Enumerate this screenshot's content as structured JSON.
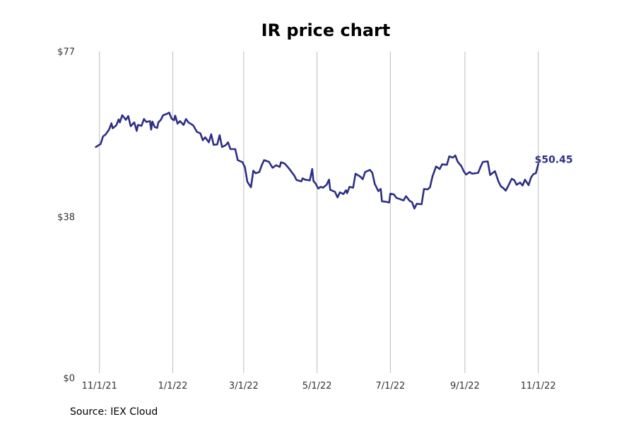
{
  "chart_data": {
    "type": "line",
    "title": "IR price chart",
    "source": "Source: IEX Cloud",
    "color": "#2e2e86",
    "y_ticks": [
      {
        "value": 0,
        "label": "$0"
      },
      {
        "value": 38,
        "label": "$38"
      },
      {
        "value": 77,
        "label": "$77"
      }
    ],
    "x_ticks": [
      {
        "date": "2021-11-01",
        "label": "11/1/21"
      },
      {
        "date": "2022-01-01",
        "label": "1/1/22"
      },
      {
        "date": "2022-03-01",
        "label": "3/1/22"
      },
      {
        "date": "2022-05-01",
        "label": "5/1/22"
      },
      {
        "date": "2022-07-01",
        "label": "7/1/22"
      },
      {
        "date": "2022-09-01",
        "label": "9/1/22"
      },
      {
        "date": "2022-11-01",
        "label": "11/1/22"
      }
    ],
    "ylim": [
      0,
      77
    ],
    "xlim": [
      "2021-10-21",
      "2022-12-10"
    ],
    "last_value_label": "$50.45",
    "series": [
      {
        "name": "IR",
        "points": [
          [
            "2021-10-29",
            54.5
          ],
          [
            "2021-11-02",
            55.2
          ],
          [
            "2021-11-04",
            57.0
          ],
          [
            "2021-11-06",
            57.4
          ],
          [
            "2021-11-09",
            58.6
          ],
          [
            "2021-11-11",
            60.1
          ],
          [
            "2021-11-12",
            58.9
          ],
          [
            "2021-11-15",
            59.6
          ],
          [
            "2021-11-17",
            61.0
          ],
          [
            "2021-11-18",
            60.3
          ],
          [
            "2021-11-20",
            62.0
          ],
          [
            "2021-11-23",
            60.9
          ],
          [
            "2021-11-25",
            61.8
          ],
          [
            "2021-11-27",
            59.4
          ],
          [
            "2021-11-30",
            60.3
          ],
          [
            "2021-12-02",
            58.3
          ],
          [
            "2021-12-03",
            59.7
          ],
          [
            "2021-12-06",
            59.5
          ],
          [
            "2021-12-08",
            61.1
          ],
          [
            "2021-12-10",
            60.4
          ],
          [
            "2021-12-13",
            60.6
          ],
          [
            "2021-12-14",
            58.6
          ],
          [
            "2021-12-15",
            60.5
          ],
          [
            "2021-12-17",
            59.2
          ],
          [
            "2021-12-19",
            59.0
          ],
          [
            "2021-12-20",
            60.3
          ],
          [
            "2021-12-22",
            60.9
          ],
          [
            "2021-12-24",
            62.0
          ],
          [
            "2021-12-27",
            62.3
          ],
          [
            "2021-12-29",
            62.6
          ],
          [
            "2021-12-31",
            61.2
          ],
          [
            "2022-01-02",
            60.8
          ],
          [
            "2022-01-03",
            61.9
          ],
          [
            "2022-01-05",
            60.0
          ],
          [
            "2022-01-07",
            60.6
          ],
          [
            "2022-01-10",
            59.7
          ],
          [
            "2022-01-12",
            61.1
          ],
          [
            "2022-01-14",
            60.3
          ],
          [
            "2022-01-18",
            59.6
          ],
          [
            "2022-01-21",
            58.1
          ],
          [
            "2022-01-24",
            57.7
          ],
          [
            "2022-01-26",
            56.1
          ],
          [
            "2022-01-28",
            56.8
          ],
          [
            "2022-01-31",
            55.6
          ],
          [
            "2022-02-02",
            57.5
          ],
          [
            "2022-02-04",
            55.0
          ],
          [
            "2022-02-07",
            55.1
          ],
          [
            "2022-02-09",
            57.3
          ],
          [
            "2022-02-11",
            54.5
          ],
          [
            "2022-02-14",
            54.9
          ],
          [
            "2022-02-16",
            55.6
          ],
          [
            "2022-02-18",
            54.0
          ],
          [
            "2022-02-22",
            54.0
          ],
          [
            "2022-02-24",
            51.4
          ],
          [
            "2022-02-28",
            50.9
          ],
          [
            "2022-03-02",
            49.7
          ],
          [
            "2022-03-04",
            46.3
          ],
          [
            "2022-03-07",
            45.0
          ],
          [
            "2022-03-09",
            48.9
          ],
          [
            "2022-03-11",
            48.3
          ],
          [
            "2022-03-14",
            48.6
          ],
          [
            "2022-03-16",
            50.2
          ],
          [
            "2022-03-18",
            51.4
          ],
          [
            "2022-03-22",
            51.0
          ],
          [
            "2022-03-25",
            49.6
          ],
          [
            "2022-03-28",
            50.2
          ],
          [
            "2022-03-31",
            49.8
          ],
          [
            "2022-04-01",
            50.9
          ],
          [
            "2022-04-04",
            50.6
          ],
          [
            "2022-04-06",
            50.0
          ],
          [
            "2022-04-08",
            49.3
          ],
          [
            "2022-04-12",
            47.8
          ],
          [
            "2022-04-14",
            46.7
          ],
          [
            "2022-04-18",
            46.4
          ],
          [
            "2022-04-19",
            47.1
          ],
          [
            "2022-04-21",
            46.8
          ],
          [
            "2022-04-25",
            46.6
          ],
          [
            "2022-04-27",
            49.3
          ],
          [
            "2022-04-28",
            46.5
          ],
          [
            "2022-04-30",
            45.8
          ],
          [
            "2022-05-02",
            44.7
          ],
          [
            "2022-05-04",
            45.1
          ],
          [
            "2022-05-06",
            44.9
          ],
          [
            "2022-05-09",
            45.6
          ],
          [
            "2022-05-11",
            46.8
          ],
          [
            "2022-05-12",
            44.4
          ],
          [
            "2022-05-16",
            43.9
          ],
          [
            "2022-05-18",
            42.6
          ],
          [
            "2022-05-20",
            43.8
          ],
          [
            "2022-05-23",
            43.4
          ],
          [
            "2022-05-25",
            44.3
          ],
          [
            "2022-05-26",
            43.6
          ],
          [
            "2022-05-28",
            45.1
          ],
          [
            "2022-05-31",
            44.9
          ],
          [
            "2022-06-02",
            48.2
          ],
          [
            "2022-06-06",
            47.5
          ],
          [
            "2022-06-08",
            46.9
          ],
          [
            "2022-06-10",
            48.6
          ],
          [
            "2022-06-14",
            49.1
          ],
          [
            "2022-06-16",
            48.4
          ],
          [
            "2022-06-18",
            45.8
          ],
          [
            "2022-06-21",
            44.1
          ],
          [
            "2022-06-23",
            44.6
          ],
          [
            "2022-06-24",
            41.7
          ],
          [
            "2022-06-27",
            41.6
          ],
          [
            "2022-06-30",
            41.4
          ],
          [
            "2022-07-01",
            43.5
          ],
          [
            "2022-07-04",
            43.3
          ],
          [
            "2022-07-06",
            42.5
          ],
          [
            "2022-07-08",
            42.3
          ],
          [
            "2022-07-12",
            41.9
          ],
          [
            "2022-07-14",
            42.9
          ],
          [
            "2022-07-17",
            41.8
          ],
          [
            "2022-07-19",
            41.5
          ],
          [
            "2022-07-21",
            40.0
          ],
          [
            "2022-07-23",
            41.1
          ],
          [
            "2022-07-27",
            41.0
          ],
          [
            "2022-07-29",
            44.6
          ],
          [
            "2022-08-01",
            44.5
          ],
          [
            "2022-08-03",
            45.0
          ],
          [
            "2022-08-05",
            47.5
          ],
          [
            "2022-08-08",
            49.9
          ],
          [
            "2022-08-11",
            49.3
          ],
          [
            "2022-08-13",
            50.4
          ],
          [
            "2022-08-17",
            50.3
          ],
          [
            "2022-08-19",
            52.3
          ],
          [
            "2022-08-22",
            52.0
          ],
          [
            "2022-08-24",
            52.5
          ],
          [
            "2022-08-26",
            51.0
          ],
          [
            "2022-08-29",
            50.0
          ],
          [
            "2022-08-31",
            48.8
          ],
          [
            "2022-09-02",
            48.0
          ],
          [
            "2022-09-05",
            48.6
          ],
          [
            "2022-09-07",
            48.2
          ],
          [
            "2022-09-12",
            48.4
          ],
          [
            "2022-09-14",
            49.8
          ],
          [
            "2022-09-16",
            51.0
          ],
          [
            "2022-09-20",
            51.1
          ],
          [
            "2022-09-22",
            47.9
          ],
          [
            "2022-09-26",
            48.8
          ],
          [
            "2022-09-29",
            46.3
          ],
          [
            "2022-10-01",
            45.2
          ],
          [
            "2022-10-03",
            44.8
          ],
          [
            "2022-10-05",
            44.2
          ],
          [
            "2022-10-07",
            45.3
          ],
          [
            "2022-10-10",
            47.0
          ],
          [
            "2022-10-12",
            46.7
          ],
          [
            "2022-10-14",
            45.6
          ],
          [
            "2022-10-17",
            46.1
          ],
          [
            "2022-10-19",
            45.4
          ],
          [
            "2022-10-21",
            46.8
          ],
          [
            "2022-10-24",
            45.5
          ],
          [
            "2022-10-26",
            47.3
          ],
          [
            "2022-10-28",
            48.1
          ],
          [
            "2022-10-30",
            48.3
          ],
          [
            "2022-11-01",
            50.45
          ]
        ]
      }
    ]
  }
}
